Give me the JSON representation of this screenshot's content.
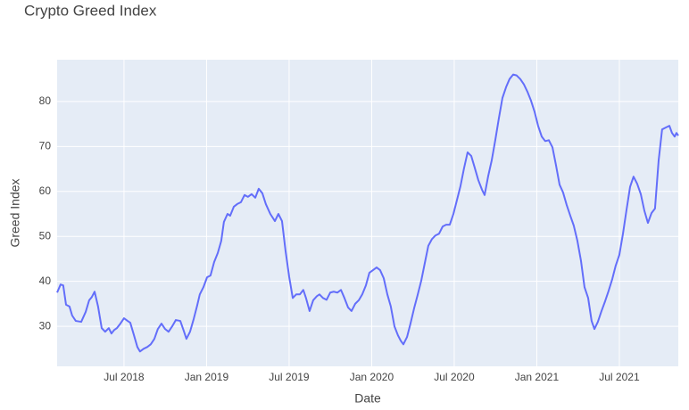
{
  "chart_data": {
    "type": "line",
    "title": "Crypto Greed Index",
    "x_label": "Date",
    "y_label": "Greed Index",
    "color": "#636efa",
    "grid": true,
    "xlim": [
      2018.095,
      2021.857
    ],
    "ylim": [
      21.1,
      89.3
    ],
    "xticks": [
      {
        "value": 2018.5,
        "label": "Jul 2018"
      },
      {
        "value": 2019.0,
        "label": "Jan 2019"
      },
      {
        "value": 2019.5,
        "label": "Jul 2019"
      },
      {
        "value": 2020.0,
        "label": "Jan 2020"
      },
      {
        "value": 2020.5,
        "label": "Jul 2020"
      },
      {
        "value": 2021.0,
        "label": "Jan 2021"
      },
      {
        "value": 2021.5,
        "label": "Jul 2021"
      }
    ],
    "yticks": [
      30,
      40,
      50,
      60,
      70,
      80
    ],
    "x": [
      2018.095,
      2018.116,
      2018.132,
      2018.149,
      2018.17,
      2018.186,
      2018.208,
      2018.241,
      2018.268,
      2018.289,
      2018.305,
      2018.322,
      2018.343,
      2018.365,
      2018.386,
      2018.408,
      2018.424,
      2018.441,
      2018.457,
      2018.478,
      2018.5,
      2018.522,
      2018.538,
      2018.559,
      2018.581,
      2018.597,
      2018.619,
      2018.641,
      2018.662,
      2018.684,
      2018.705,
      2018.727,
      2018.749,
      2018.77,
      2018.792,
      2018.814,
      2018.841,
      2018.862,
      2018.878,
      2018.9,
      2018.922,
      2018.943,
      2018.959,
      2018.981,
      2019.003,
      2019.024,
      2019.046,
      2019.068,
      2019.089,
      2019.105,
      2019.127,
      2019.143,
      2019.165,
      2019.186,
      2019.208,
      2019.23,
      2019.251,
      2019.273,
      2019.295,
      2019.316,
      2019.338,
      2019.359,
      2019.386,
      2019.414,
      2019.435,
      2019.457,
      2019.478,
      2019.5,
      2019.522,
      2019.543,
      2019.565,
      2019.586,
      2019.603,
      2019.624,
      2019.646,
      2019.668,
      2019.684,
      2019.705,
      2019.727,
      2019.749,
      2019.77,
      2019.792,
      2019.814,
      2019.835,
      2019.857,
      2019.878,
      2019.9,
      2019.922,
      2019.943,
      2019.965,
      2019.986,
      2020.008,
      2020.03,
      2020.051,
      2020.073,
      2020.095,
      2020.116,
      2020.138,
      2020.159,
      2020.176,
      2020.192,
      2020.214,
      2020.235,
      2020.257,
      2020.278,
      2020.3,
      2020.322,
      2020.343,
      2020.365,
      2020.386,
      2020.408,
      2020.43,
      2020.451,
      2020.473,
      2020.495,
      2020.516,
      2020.538,
      2020.559,
      2020.581,
      2020.603,
      2020.624,
      2020.646,
      2020.668,
      2020.684,
      2020.705,
      2020.727,
      2020.749,
      2020.77,
      2020.792,
      2020.814,
      2020.835,
      2020.857,
      2020.878,
      2020.9,
      2020.922,
      2020.943,
      2020.965,
      2020.986,
      2021.008,
      2021.03,
      2021.051,
      2021.073,
      2021.095,
      2021.116,
      2021.138,
      2021.159,
      2021.181,
      2021.203,
      2021.224,
      2021.246,
      2021.268,
      2021.289,
      2021.311,
      2021.332,
      2021.349,
      2021.37,
      2021.392,
      2021.414,
      2021.435,
      2021.457,
      2021.478,
      2021.5,
      2021.522,
      2021.543,
      2021.565,
      2021.586,
      2021.608,
      2021.63,
      2021.651,
      2021.673,
      2021.695,
      2021.716,
      2021.738,
      2021.759,
      2021.781,
      2021.803,
      2021.819,
      2021.835,
      2021.846,
      2021.857
    ],
    "values": [
      37.5,
      39.3,
      39.1,
      34.8,
      34.4,
      32.4,
      31.2,
      31,
      33.2,
      35.8,
      36.5,
      37.7,
      34.4,
      29.6,
      28.8,
      29.6,
      28.4,
      29.2,
      29.6,
      30.6,
      31.8,
      31.2,
      30.8,
      28.2,
      25.4,
      24.4,
      25,
      25.4,
      26,
      27.2,
      29.4,
      30.6,
      29.4,
      28.8,
      30,
      31.4,
      31.2,
      29,
      27.2,
      28.8,
      31.6,
      34.6,
      37.1,
      38.7,
      40.9,
      41.3,
      44.3,
      46.3,
      49,
      53.2,
      55,
      54.6,
      56.6,
      57.2,
      57.6,
      59.2,
      58.8,
      59.4,
      58.6,
      60.6,
      59.6,
      57.2,
      55,
      53.4,
      55,
      53.4,
      46.9,
      41.1,
      36.3,
      37.1,
      37.1,
      38.1,
      36.2,
      33.4,
      35.8,
      36.7,
      37.1,
      36.3,
      35.9,
      37.5,
      37.7,
      37.5,
      38.1,
      36.3,
      34.2,
      33.4,
      35,
      35.8,
      37.1,
      39.1,
      41.9,
      42.5,
      43.1,
      42.5,
      40.7,
      37.1,
      34.4,
      30,
      28,
      26.8,
      26,
      27.6,
      30.6,
      34,
      36.9,
      40.1,
      44.1,
      47.9,
      49.4,
      50.2,
      50.6,
      52.2,
      52.6,
      52.6,
      55,
      58,
      61.2,
      65.1,
      68.7,
      67.9,
      65.3,
      62.5,
      60.4,
      59.2,
      63.3,
      66.9,
      71.5,
      76.2,
      80.8,
      83.2,
      85,
      86,
      85.8,
      85,
      83.8,
      82.2,
      80.2,
      77.8,
      74.6,
      72.2,
      71.2,
      71.4,
      69.8,
      65.9,
      61.5,
      59.8,
      57,
      54.6,
      52.4,
      49,
      44.5,
      38.7,
      36.3,
      31.2,
      29.4,
      31,
      33.4,
      35.6,
      37.9,
      40.5,
      43.5,
      45.9,
      50.6,
      55.8,
      61,
      63.3,
      61.7,
      59.4,
      55.8,
      53,
      55.2,
      56.2,
      66.9,
      73.8,
      74.2,
      74.6,
      73,
      72.2,
      73,
      72.4
    ]
  }
}
